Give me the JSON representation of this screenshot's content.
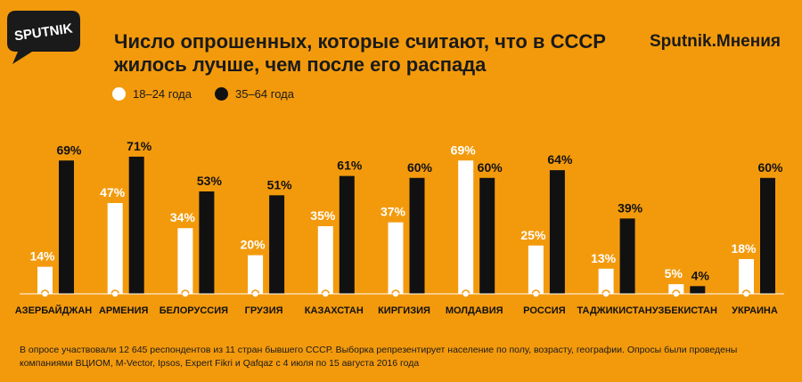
{
  "brand": {
    "logo_text": "SPUTNIK",
    "outlet": "Sputnik.Мнения"
  },
  "chart_data": {
    "type": "bar",
    "title": "Число опрошенных, которые считают, что в СССР жилось лучше, чем после его распада",
    "categories": [
      "АЗЕРБАЙДЖАН",
      "АРМЕНИЯ",
      "БЕЛОРУССИЯ",
      "ГРУЗИЯ",
      "КАЗАХСТАН",
      "КИРГИЗИЯ",
      "МОЛДАВИЯ",
      "РОССИЯ",
      "ТАДЖИКИСТАН",
      "УЗБЕКИСТАН",
      "УКРАИНА"
    ],
    "series": [
      {
        "name": "18–24 года",
        "color": "#ffffff",
        "values": [
          14,
          47,
          34,
          20,
          35,
          37,
          69,
          25,
          13,
          5,
          18
        ]
      },
      {
        "name": "35–64 года",
        "color": "#111111",
        "values": [
          69,
          71,
          53,
          51,
          61,
          60,
          60,
          64,
          39,
          4,
          60
        ]
      }
    ],
    "value_suffix": "%",
    "ylim": [
      0,
      80
    ],
    "grid": false,
    "legend_position": "top-left"
  },
  "footnote": "В опросе участвовали 12 645 респондентов из 11 стран бывшего СССР. Выборка репрезентирует население по полу, возрасту, географии. Опросы были проведены компаниями ВЦИОМ, M-Vector, Ipsos, Expert Fikri и Qafqaz с 4 июля по 15 августа 2016 года"
}
